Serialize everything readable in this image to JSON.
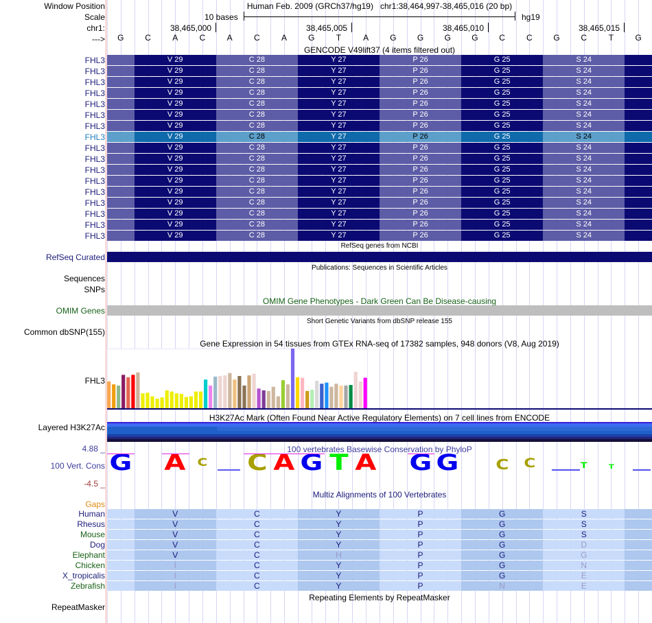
{
  "header": {
    "window_position_label": "Window Position",
    "scale_label": "Scale",
    "chrom_label": "chr1:",
    "strand_label": "--->",
    "assembly_title": "Human Feb. 2009 (GRCh37/hg19)   chr1:38,464,997-38,465,016 (20 bp)",
    "scale_text": "10 bases",
    "scale_db": "hg19",
    "coords": [
      "38,465,000",
      "38,465,005",
      "38,465,010",
      "38,465,015"
    ]
  },
  "sequence": [
    "G",
    "C",
    "A",
    "C",
    "A",
    "C",
    "A",
    "G",
    "T",
    "A",
    "G",
    "G",
    "G",
    "G",
    "C",
    "C",
    "G",
    "C",
    "T",
    "G"
  ],
  "gencode": {
    "title": "GENCODE V49lift37 (4 items filtered out)",
    "row_label": "FHL3",
    "row_count": 17,
    "highlighted_row": 7,
    "codons": [
      "V 29",
      "C 28",
      "Y 27",
      "P 26",
      "G 25",
      "S 24"
    ],
    "colors": {
      "light": "#5d5ca6",
      "dark": "#0b0a73",
      "hl_light": "#5d9fcb",
      "hl_dark": "#0f6aab"
    }
  },
  "refseq": {
    "title": "RefSeq genes from NCBI",
    "label": "RefSeq Curated"
  },
  "publications": {
    "title": "Publications: Sequences in Scientific Articles",
    "label_1": "Sequences",
    "label_2": "SNPs"
  },
  "omim": {
    "title": "OMIM Gene Phenotypes - Dark Green Can Be Disease-causing",
    "label": "OMIM Genes"
  },
  "dbsnp": {
    "title": "Short Genetic Variants from dbSNP release 155",
    "label": "Common dbSNP(155)"
  },
  "gtex": {
    "title": "Gene Expression in 54 tissues from GTEx RNA-seq of 17382 samples, 948 donors (V8, Aug 2019)",
    "label": "FHL3"
  },
  "chart_data": {
    "type": "bar",
    "title": "Gene Expression in 54 tissues from GTEx RNA-seq of 17382 samples, 948 donors (V8, Aug 2019)",
    "xlabel": "",
    "ylabel": "",
    "note": "relative expression heights, 0-100 scale (max bar = 100)",
    "ylim": [
      0,
      100
    ],
    "values": [
      45,
      40,
      38,
      56,
      52,
      56,
      60,
      25,
      26,
      20,
      16,
      18,
      30,
      28,
      25,
      24,
      19,
      20,
      28,
      28,
      48,
      38,
      53,
      54,
      55,
      59,
      48,
      54,
      38,
      55,
      58,
      33,
      30,
      29,
      36,
      20,
      47,
      40,
      100,
      52,
      51,
      29,
      31,
      46,
      41,
      43,
      36,
      41,
      38,
      38,
      39,
      61,
      45,
      51
    ],
    "colors": [
      "#f7a650",
      "#ef9e0f",
      "#8fba8c",
      "#8b1c62",
      "#e8664f",
      "#ff0000",
      "#cdb29a",
      "#eeee00",
      "#eeee00",
      "#eeee00",
      "#eeee00",
      "#eeee00",
      "#eeee00",
      "#eeee00",
      "#eeee00",
      "#eeee00",
      "#eeee00",
      "#eeee00",
      "#eeee00",
      "#eeee00",
      "#00cdcd",
      "#ee82ee",
      "#9ab9c9",
      "#eed5d2",
      "#eed5d2",
      "#cdb79e",
      "#f0c080",
      "#8b7355",
      "#8b7355",
      "#cda575",
      "#eed5d2",
      "#b452cd",
      "#7d3c98",
      "#cdb79e",
      "#cdb79e",
      "#cdb79e",
      "#9acd32",
      "#cdb79e",
      "#7b68ee",
      "#ffd700",
      "#ffb6c1",
      "#cd9b1d",
      "#b4eeb4",
      "#d9d9d9",
      "#3a5fcd",
      "#1e90ff",
      "#cdb79e",
      "#cdb79e",
      "#ffd39b",
      "#a6a6a6",
      "#008b45",
      "#eed5d2",
      "#eed5d2",
      "#ff00ff"
    ]
  },
  "h3k27ac": {
    "title": "H3K27Ac Mark (Often Found Near Active Regulatory Elements) on 7 cell lines from ENCODE",
    "label": "Layered H3K27Ac"
  },
  "conservation": {
    "title": "100 vertebrates Basewise Conservation by PhyloP",
    "label": "100 Vert. Cons",
    "max_label": "4.88 _",
    "min_label": "-4.5 _",
    "logo_letters": [
      "G",
      "",
      "A",
      "C",
      "",
      "C",
      "A",
      "G",
      "T",
      "A",
      "",
      "G",
      "G",
      "",
      "C",
      "C",
      "",
      "T",
      "T",
      ""
    ]
  },
  "multiz": {
    "title": "Multiz Alignments of 100 Vertebrates",
    "gaps_label": "Gaps",
    "species": [
      {
        "name": "Human",
        "color": "#1a1a7a",
        "aa": [
          "V",
          "C",
          "Y",
          "P",
          "G",
          "S"
        ],
        "dim": [
          false,
          false,
          false,
          false,
          false,
          false
        ]
      },
      {
        "name": "Rhesus",
        "color": "#1a1a7a",
        "aa": [
          "V",
          "C",
          "Y",
          "P",
          "G",
          "S"
        ],
        "dim": [
          false,
          false,
          false,
          false,
          false,
          false
        ]
      },
      {
        "name": "Mouse",
        "color": "#166016",
        "aa": [
          "V",
          "C",
          "Y",
          "P",
          "G",
          "S"
        ],
        "dim": [
          false,
          false,
          false,
          false,
          false,
          false
        ]
      },
      {
        "name": "Dog",
        "color": "#1a1a7a",
        "aa": [
          "V",
          "C",
          "Y",
          "P",
          "G",
          "D"
        ],
        "dim": [
          false,
          false,
          false,
          false,
          false,
          true
        ]
      },
      {
        "name": "Elephant",
        "color": "#166016",
        "aa": [
          "V",
          "C",
          "H",
          "P",
          "G",
          "G"
        ],
        "dim": [
          false,
          false,
          true,
          false,
          false,
          true
        ]
      },
      {
        "name": "Chicken",
        "color": "#166016",
        "aa": [
          "I",
          "C",
          "Y",
          "P",
          "G",
          "N"
        ],
        "dim": [
          true,
          false,
          false,
          false,
          false,
          true
        ]
      },
      {
        "name": "X_tropicalis",
        "color": "#1a1a7a",
        "aa": [
          "I",
          "C",
          "Y",
          "P",
          "G",
          "E"
        ],
        "dim": [
          true,
          false,
          false,
          false,
          false,
          true
        ]
      },
      {
        "name": "Zebrafish",
        "color": "#166016",
        "aa": [
          "I",
          "C",
          "Y",
          "P",
          "N",
          "E"
        ],
        "dim": [
          true,
          false,
          false,
          false,
          true,
          true
        ]
      }
    ]
  },
  "repeatmasker": {
    "title": "Repeating Elements by RepeatMasker",
    "label": "RepeatMasker"
  }
}
